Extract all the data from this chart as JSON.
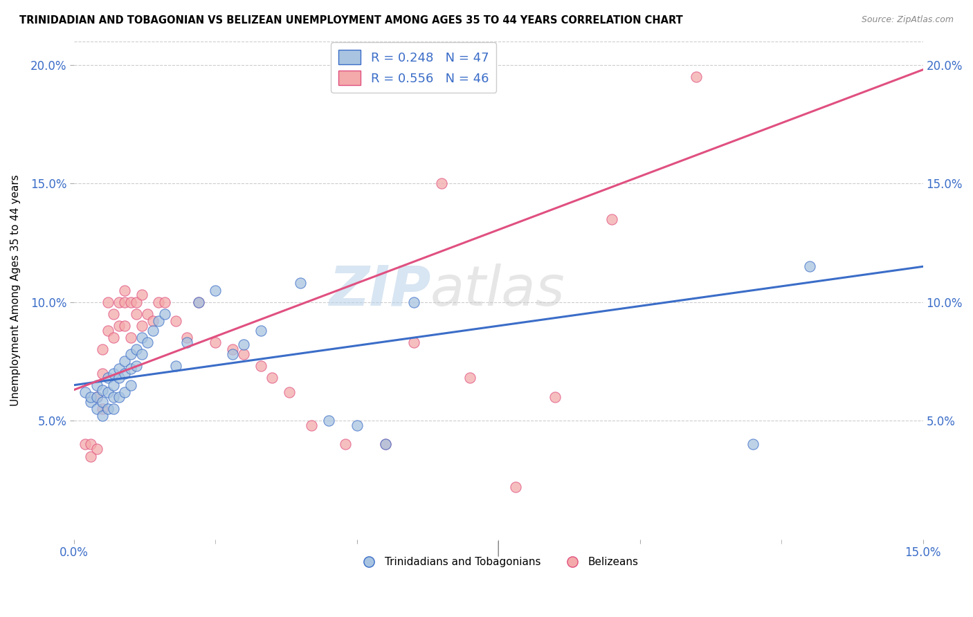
{
  "title": "TRINIDADIAN AND TOBAGONIAN VS BELIZEAN UNEMPLOYMENT AMONG AGES 35 TO 44 YEARS CORRELATION CHART",
  "source": "Source: ZipAtlas.com",
  "ylabel": "Unemployment Among Ages 35 to 44 years",
  "xlim": [
    0.0,
    0.15
  ],
  "ylim": [
    0.0,
    0.21
  ],
  "legend_blue_r": "R = 0.248",
  "legend_blue_n": "N = 47",
  "legend_pink_r": "R = 0.556",
  "legend_pink_n": "N = 46",
  "blue_color": "#A8C4E0",
  "pink_color": "#F4AAAA",
  "blue_line_color": "#3B6DC8",
  "pink_line_color": "#E05080",
  "blue_scatter_x": [
    0.002,
    0.003,
    0.003,
    0.004,
    0.004,
    0.004,
    0.005,
    0.005,
    0.005,
    0.006,
    0.006,
    0.006,
    0.007,
    0.007,
    0.007,
    0.007,
    0.008,
    0.008,
    0.008,
    0.009,
    0.009,
    0.009,
    0.01,
    0.01,
    0.01,
    0.011,
    0.011,
    0.012,
    0.012,
    0.013,
    0.014,
    0.015,
    0.016,
    0.018,
    0.02,
    0.022,
    0.025,
    0.028,
    0.03,
    0.033,
    0.04,
    0.045,
    0.05,
    0.055,
    0.06,
    0.12,
    0.13
  ],
  "blue_scatter_y": [
    0.062,
    0.058,
    0.06,
    0.065,
    0.06,
    0.055,
    0.063,
    0.058,
    0.052,
    0.068,
    0.062,
    0.055,
    0.07,
    0.065,
    0.06,
    0.055,
    0.072,
    0.068,
    0.06,
    0.075,
    0.07,
    0.062,
    0.078,
    0.072,
    0.065,
    0.08,
    0.073,
    0.085,
    0.078,
    0.083,
    0.088,
    0.092,
    0.095,
    0.073,
    0.083,
    0.1,
    0.105,
    0.078,
    0.082,
    0.088,
    0.108,
    0.05,
    0.048,
    0.04,
    0.1,
    0.04,
    0.115
  ],
  "pink_scatter_x": [
    0.002,
    0.003,
    0.003,
    0.004,
    0.004,
    0.005,
    0.005,
    0.005,
    0.006,
    0.006,
    0.007,
    0.007,
    0.008,
    0.008,
    0.009,
    0.009,
    0.009,
    0.01,
    0.01,
    0.011,
    0.011,
    0.012,
    0.012,
    0.013,
    0.014,
    0.015,
    0.016,
    0.018,
    0.02,
    0.022,
    0.025,
    0.028,
    0.03,
    0.033,
    0.035,
    0.038,
    0.042,
    0.048,
    0.055,
    0.06,
    0.065,
    0.07,
    0.078,
    0.085,
    0.095,
    0.11
  ],
  "pink_scatter_y": [
    0.04,
    0.035,
    0.04,
    0.06,
    0.038,
    0.08,
    0.07,
    0.055,
    0.1,
    0.088,
    0.095,
    0.085,
    0.1,
    0.09,
    0.105,
    0.1,
    0.09,
    0.1,
    0.085,
    0.1,
    0.095,
    0.103,
    0.09,
    0.095,
    0.092,
    0.1,
    0.1,
    0.092,
    0.085,
    0.1,
    0.083,
    0.08,
    0.078,
    0.073,
    0.068,
    0.062,
    0.048,
    0.04,
    0.04,
    0.083,
    0.15,
    0.068,
    0.022,
    0.06,
    0.135,
    0.195
  ],
  "blue_trendline_x": [
    0.0,
    0.15
  ],
  "blue_trendline_y": [
    0.065,
    0.115
  ],
  "pink_trendline_x": [
    0.0,
    0.15
  ],
  "pink_trendline_y": [
    0.063,
    0.198
  ],
  "watermark_zip": "ZIP",
  "watermark_atlas": "atlas",
  "legend_labels": [
    "Trinidadians and Tobagonians",
    "Belizeans"
  ],
  "background_color": "#FFFFFF",
  "grid_color": "#CCCCCC",
  "ytick_positions": [
    0.05,
    0.1,
    0.15,
    0.2
  ],
  "xtick_positions": [
    0.0,
    0.05,
    0.1,
    0.15
  ]
}
